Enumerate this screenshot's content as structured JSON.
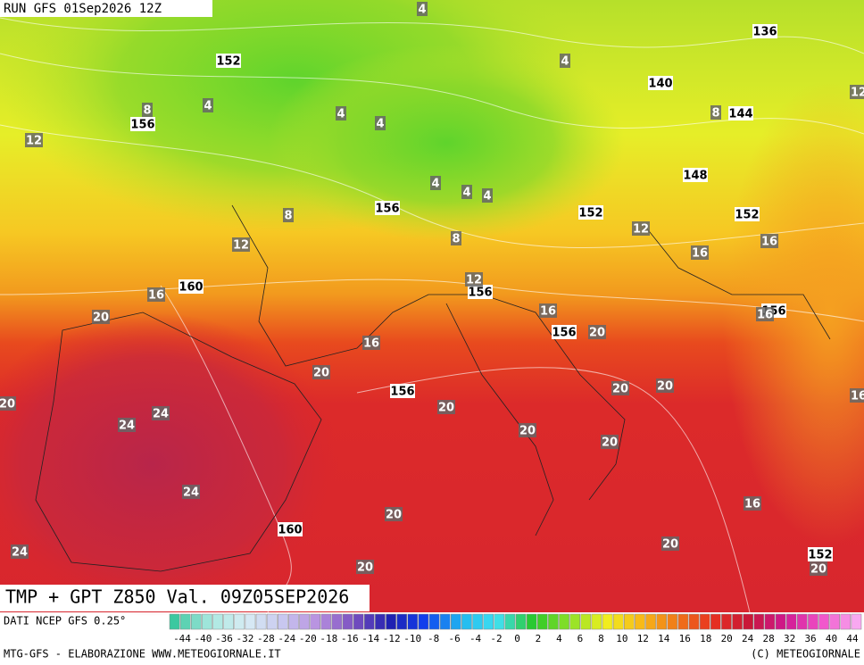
{
  "header": {
    "run": "RUN GFS 01Sep2026 12Z"
  },
  "map_labels": {
    "geopotential": [
      152,
      136,
      140,
      144,
      156,
      148,
      156,
      152,
      152,
      160,
      156,
      156,
      156,
      156,
      160,
      152
    ],
    "temperature": [
      4,
      4,
      4,
      4,
      4,
      8,
      8,
      12,
      12,
      4,
      4,
      4,
      8,
      8,
      12,
      12,
      12,
      16,
      16,
      16,
      16,
      16,
      20,
      16,
      20,
      20,
      20,
      16,
      20,
      20,
      20,
      24,
      24,
      20,
      20,
      24,
      20,
      16,
      20,
      24,
      20,
      20
    ]
  },
  "footer": {
    "title": "TMP + GPT Z850 Val. 09Z05SEP2026",
    "source": "DATI NCEP GFS 0.25°",
    "scale": [
      -44,
      -40,
      -36,
      -32,
      -28,
      -24,
      -20,
      -18,
      -16,
      -14,
      -12,
      -10,
      -8,
      -6,
      -4,
      -2,
      0,
      2,
      4,
      6,
      8,
      10,
      12,
      14,
      16,
      18,
      20,
      24,
      28,
      32,
      36,
      40,
      44
    ],
    "credit_left": "MTG-GFS - ELABORAZIONE WWW.METEOGIORNALE.IT",
    "credit_right": "(C) METEOGIORNALE"
  }
}
